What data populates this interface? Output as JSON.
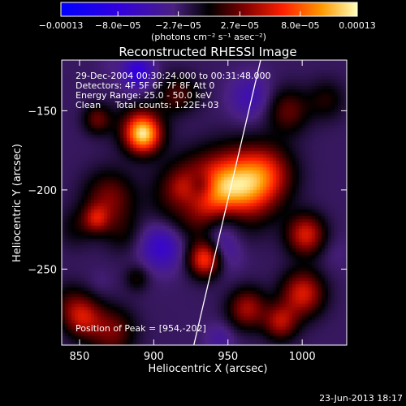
{
  "chart_data": {
    "type": "heatmap",
    "title": "Reconstructed RHESSI Image",
    "xlabel": "Heliocentric X (arcsec)",
    "ylabel": "Heliocentric Y (arcsec)",
    "xlim": [
      838,
      1030
    ],
    "ylim": [
      -298,
      -118
    ],
    "x_ticks": [
      850,
      900,
      950,
      1000
    ],
    "x_tick_labels": [
      "850",
      "900",
      "950",
      "1000"
    ],
    "y_ticks": [
      -150,
      -200,
      -250
    ],
    "y_tick_labels": [
      "−150",
      "−200",
      "−250"
    ],
    "colorbar": {
      "min": -0.00013,
      "max": 0.00013,
      "ticks": [
        -0.00013,
        -8e-05,
        -2.7e-05,
        2.7e-05,
        8e-05,
        0.00013
      ],
      "tick_labels": [
        "−0.00013",
        "−8.0e−05",
        "−2.7e−05",
        "2.7e−05",
        "8.0e−05",
        "0.00013"
      ],
      "units": "(photons cm⁻² s⁻¹ asec⁻²)"
    },
    "sources": [
      {
        "x": 953,
        "y": -200,
        "amp": 1.0,
        "sigma": 16
      },
      {
        "x": 975,
        "y": -190,
        "amp": 0.55,
        "sigma": 13
      },
      {
        "x": 925,
        "y": -205,
        "amp": 0.7,
        "sigma": 15
      },
      {
        "x": 893,
        "y": -165,
        "amp": 0.85,
        "sigma": 8
      },
      {
        "x": 935,
        "y": -243,
        "amp": 0.85,
        "sigma": 8
      },
      {
        "x": 1002,
        "y": -228,
        "amp": 0.6,
        "sigma": 9
      },
      {
        "x": 1000,
        "y": -265,
        "amp": 0.6,
        "sigma": 10
      },
      {
        "x": 852,
        "y": -280,
        "amp": 0.5,
        "sigma": 9
      },
      {
        "x": 990,
        "y": -150,
        "amp": 0.35,
        "sigma": 10
      },
      {
        "x": 870,
        "y": -205,
        "amp": 0.4,
        "sigma": 12
      },
      {
        "x": 915,
        "y": -140,
        "amp": 0.3,
        "sigma": 9
      },
      {
        "x": 962,
        "y": -275,
        "amp": 0.45,
        "sigma": 9
      },
      {
        "x": 985,
        "y": -283,
        "amp": 0.5,
        "sigma": 8
      }
    ],
    "limb_line": [
      [
        927,
        -298
      ],
      [
        972,
        -118
      ]
    ],
    "annotations": [
      "29-Dec-2004 00:30:24.000 to 00:31:48.000",
      "Detectors: 4F 5F 6F 7F 8F  Att 0",
      "Energy Range: 25.0 - 50.0 keV",
      "Clean     Total counts: 1.22E+03"
    ],
    "peak_label": "Position of Peak = [954,-202]",
    "timestamp": "23-Jun-2013 18:17"
  }
}
